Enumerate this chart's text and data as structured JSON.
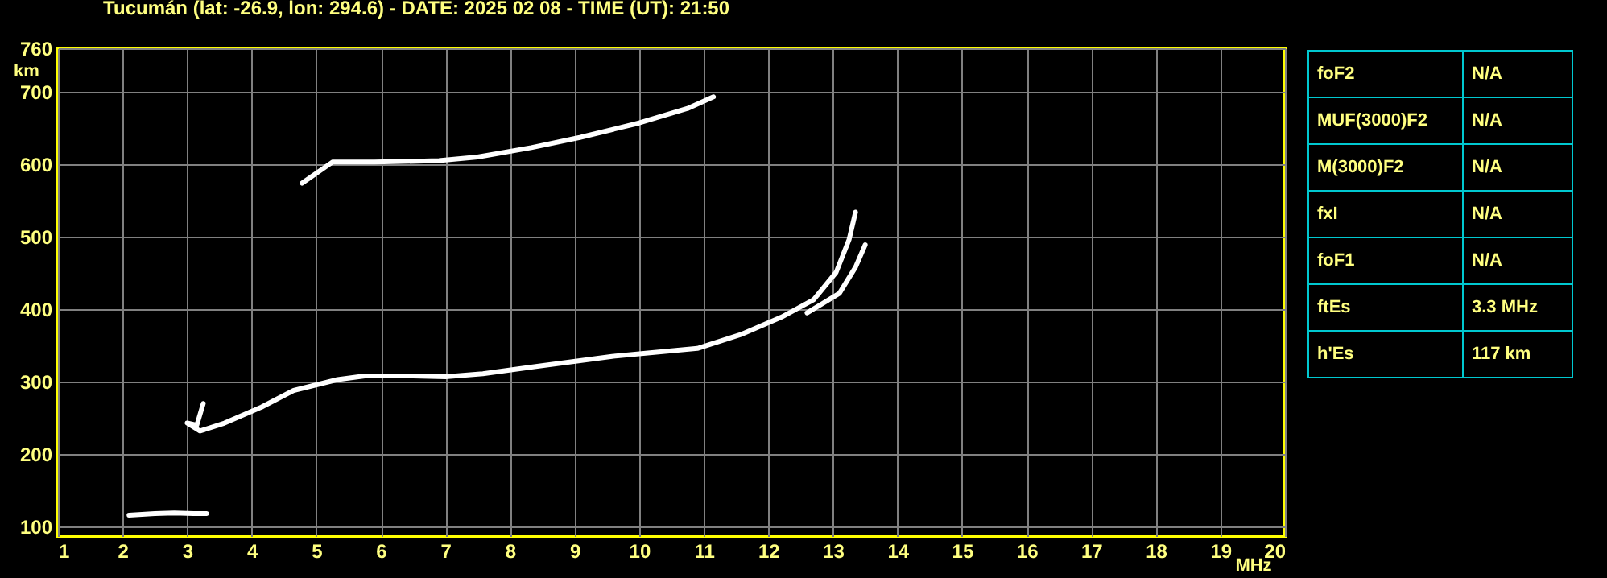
{
  "chart_data": [
    {
      "type": "line",
      "title": "Tucumán (lat: -26.9, lon: 294.6) - DATE: 2025 02 08 - TIME (UT): 21:50",
      "xlabel": "MHz",
      "ylabel": "km",
      "xlim": [
        1,
        20
      ],
      "ylim": [
        87,
        760
      ],
      "xticks": [
        1,
        2,
        3,
        4,
        5,
        6,
        7,
        8,
        9,
        10,
        11,
        12,
        13,
        14,
        15,
        16,
        17,
        18,
        19,
        20
      ],
      "yticks": [
        100,
        200,
        300,
        400,
        500,
        600,
        700,
        760
      ],
      "grid": true,
      "series": [
        {
          "color": "#ffffff",
          "x": [
            2.1,
            2.5,
            2.8,
            3.1,
            3.3
          ],
          "values": [
            116,
            118,
            119,
            118,
            118
          ]
        },
        {
          "color": "#ffffff",
          "x": [
            3.25,
            3.15,
            3.0,
            3.2,
            3.58,
            4.15,
            4.65,
            5.33,
            5.75,
            6.5,
            7.0,
            7.58,
            8.4,
            9.58,
            10.9,
            11.6,
            12.2,
            12.7,
            13.05,
            13.25,
            13.35
          ],
          "values": [
            270,
            240,
            243,
            232,
            243,
            265,
            288,
            303,
            308,
            308,
            307,
            311,
            321,
            335,
            346,
            366,
            389,
            413,
            451,
            496,
            534
          ]
        },
        {
          "color": "#ffffff",
          "x": [
            12.6,
            13.1,
            13.35,
            13.5
          ],
          "values": [
            395,
            422,
            458,
            489
          ]
        },
        {
          "color": "#ffffff",
          "x": [
            4.78,
            5.25,
            5.9,
            6.9,
            7.5,
            8.33,
            9.08,
            10.0,
            10.75,
            11.15
          ],
          "values": [
            574,
            603,
            603,
            605,
            610,
            623,
            637,
            657,
            677,
            693
          ]
        }
      ]
    },
    {
      "type": "other",
      "y_categories": [
        "foF2",
        "MUF(3000)F2",
        "M(3000)F2",
        "fxI",
        "foF1",
        "ftEs",
        "h'Es"
      ],
      "cell_labels": [
        [
          "N/A"
        ],
        [
          "N/A"
        ],
        [
          "N/A"
        ],
        [
          "N/A"
        ],
        [
          "N/A"
        ],
        [
          "3.3 MHz"
        ],
        [
          "117 km"
        ]
      ]
    }
  ]
}
